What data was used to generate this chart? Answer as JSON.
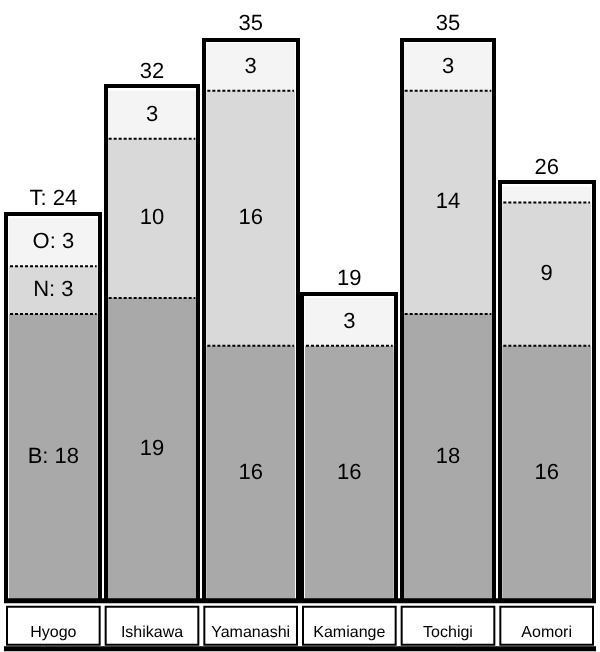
{
  "chart_data": {
    "type": "bar",
    "stacked": true,
    "categories": [
      "Hyogo",
      "Ishikawa",
      "Yamanashi",
      "Kamiange",
      "Tochigi",
      "Aomori"
    ],
    "series": [
      {
        "color": "#a9a9a9",
        "values": [
          18,
          19,
          16,
          16,
          18,
          16
        ],
        "value_labels": [
          "B: 18",
          "19",
          "16",
          "16",
          "18",
          "16"
        ]
      },
      {
        "color": "#d9d9d9",
        "values": [
          3,
          10,
          16,
          null,
          14,
          9
        ],
        "value_labels": [
          "N: 3",
          "10",
          "16",
          null,
          "14",
          "9"
        ]
      },
      {
        "color": "#f4f4f4",
        "values": [
          3,
          3,
          3,
          3,
          3,
          1
        ],
        "value_labels": [
          "O: 3",
          "3",
          "3",
          "3",
          "3",
          null
        ]
      }
    ],
    "totals": [
      "T: 24",
      "32",
      "35",
      "19",
      "35",
      "26"
    ]
  }
}
